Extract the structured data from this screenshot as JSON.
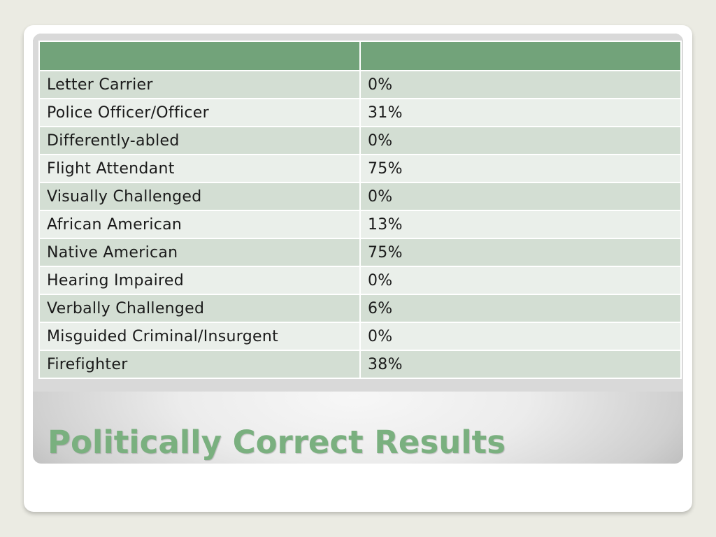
{
  "slide": {
    "title": "Politically Correct Results",
    "table": {
      "header": [
        "",
        ""
      ],
      "rows": [
        {
          "label": "Letter Carrier",
          "value": "0%"
        },
        {
          "label": "Police Officer/Officer",
          "value": "31%"
        },
        {
          "label": "Differently-abled",
          "value": "0%"
        },
        {
          "label": "Flight Attendant",
          "value": "75%"
        },
        {
          "label": "Visually Challenged",
          "value": "0%"
        },
        {
          "label": "African American",
          "value": "13%"
        },
        {
          "label": "Native American",
          "value": "75%"
        },
        {
          "label": "Hearing Impaired",
          "value": "0%"
        },
        {
          "label": "Verbally Challenged",
          "value": "6%"
        },
        {
          "label": "Misguided Criminal/Insurgent",
          "value": "0%"
        },
        {
          "label": "Firefighter",
          "value": "38%"
        }
      ]
    }
  },
  "colors": {
    "header": "#72a37a",
    "row_dark": "#d3ded3",
    "row_light": "#eaefea",
    "title": "#7ab07f"
  }
}
